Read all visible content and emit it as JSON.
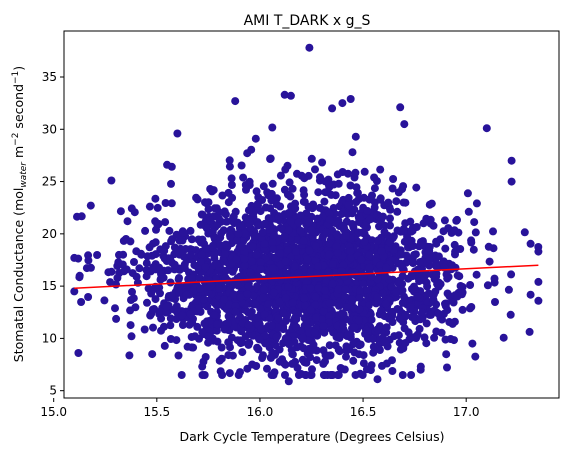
{
  "chart_data": {
    "type": "scatter",
    "title": "AMI T_DARK x g_S",
    "xlabel": "Dark Cycle Temperature (Degrees Celsius)",
    "ylabel": {
      "prefix": "Stomatal Conductance (mol",
      "subscript": "water",
      "middle": " m",
      "sup1": "−2",
      "middle2": " second",
      "sup2": "−1",
      "suffix": ")"
    },
    "xlim": [
      15.05,
      17.45
    ],
    "ylim": [
      4.3,
      39.4
    ],
    "xticks": [
      15.0,
      15.5,
      16.0,
      16.5,
      17.0
    ],
    "xtick_labels": [
      "15.0",
      "15.5",
      "16.0",
      "16.5",
      "17.0"
    ],
    "yticks": [
      5,
      10,
      15,
      20,
      25,
      30,
      35
    ],
    "ytick_labels": [
      "5",
      "10",
      "15",
      "20",
      "25",
      "30",
      "35"
    ],
    "grid": false,
    "point_color": "#28139a",
    "trend_color": "#ff0000",
    "series": [
      {
        "kind": "points",
        "distribution": {
          "x_range": [
            15.1,
            17.35
          ],
          "x_center": 16.2,
          "y_center": 16.0,
          "y_spread": 4.5
        },
        "outliers": [
          [
            16.24,
            37.8
          ],
          [
            16.12,
            33.3
          ],
          [
            16.15,
            33.2
          ],
          [
            16.44,
            32.9
          ],
          [
            15.88,
            32.7
          ],
          [
            16.4,
            32.5
          ],
          [
            16.14,
            5.9
          ],
          [
            16.57,
            6.1
          ],
          [
            15.12,
            8.6
          ],
          [
            15.1,
            17.7
          ],
          [
            15.1,
            14.5
          ],
          [
            17.1,
            30.1
          ],
          [
            17.22,
            27.0
          ],
          [
            17.35,
            18.3
          ],
          [
            17.35,
            15.4
          ],
          [
            17.35,
            13.6
          ],
          [
            15.18,
            22.7
          ],
          [
            15.28,
            25.1
          ],
          [
            15.6,
            29.6
          ],
          [
            16.68,
            32.1
          ],
          [
            16.35,
            32.0
          ],
          [
            16.7,
            30.5
          ],
          [
            17.22,
            25.0
          ],
          [
            15.55,
            26.6
          ],
          [
            16.2,
            6.6
          ],
          [
            15.72,
            7.3
          ],
          [
            16.78,
            7.3
          ],
          [
            17.03,
            9.5
          ]
        ]
      }
    ],
    "trendline": {
      "x": [
        15.1,
        17.35
      ],
      "y": [
        14.8,
        17.0
      ]
    }
  }
}
